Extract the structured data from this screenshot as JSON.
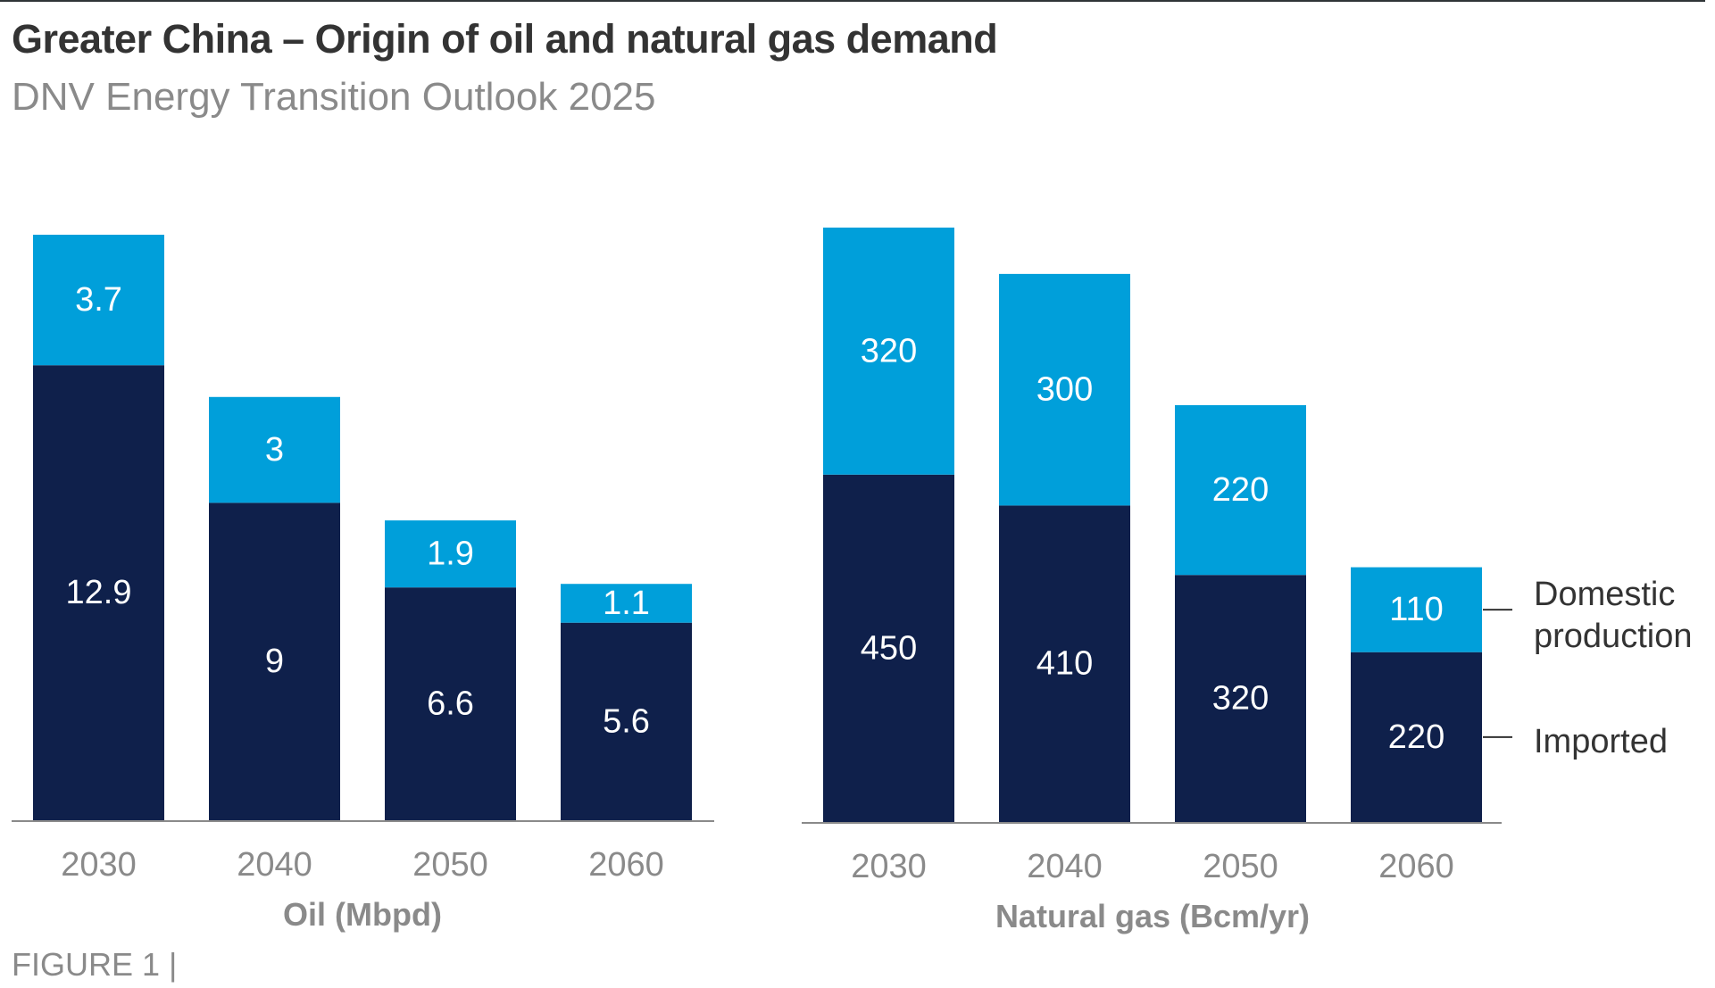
{
  "header": {
    "title": "Greater China – Origin of oil and natural gas demand",
    "subtitle": "DNV Energy Transition Outlook 2025",
    "figure_label": "FIGURE 1 |"
  },
  "colors": {
    "domestic": "#009FDA",
    "imported": "#0F204B",
    "axis": "#8a8a8a",
    "legend_line": "#333333"
  },
  "legend": {
    "domestic_line1": "Domestic",
    "domestic_line2": "production",
    "imported": "Imported"
  },
  "chart_data": [
    {
      "type": "bar",
      "stacked": true,
      "title": "Oil (Mbpd)",
      "xlabel": "Oil (Mbpd)",
      "ylabel": "",
      "categories": [
        "2030",
        "2040",
        "2050",
        "2060"
      ],
      "series": [
        {
          "name": "Imported",
          "values": [
            12.9,
            9,
            6.6,
            5.6
          ],
          "labels": [
            "12.9",
            "9",
            "6.6",
            "5.6"
          ]
        },
        {
          "name": "Domestic production",
          "values": [
            3.7,
            3,
            1.9,
            1.1
          ],
          "labels": [
            "3.7",
            "3",
            "1.9",
            "1.1"
          ]
        }
      ],
      "ylim": [
        0,
        16.6
      ],
      "grid": false,
      "legend": "none"
    },
    {
      "type": "bar",
      "stacked": true,
      "title": "Natural gas (Bcm/yr)",
      "xlabel": "Natural gas (Bcm/yr)",
      "ylabel": "",
      "categories": [
        "2030",
        "2040",
        "2050",
        "2060"
      ],
      "series": [
        {
          "name": "Imported",
          "values": [
            450,
            410,
            320,
            220
          ],
          "labels": [
            "450",
            "410",
            "320",
            "220"
          ]
        },
        {
          "name": "Domestic production",
          "values": [
            320,
            300,
            220,
            110
          ],
          "labels": [
            "320",
            "300",
            "220",
            "110"
          ]
        }
      ],
      "ylim": [
        0,
        770
      ],
      "grid": false,
      "legend": "right"
    }
  ]
}
